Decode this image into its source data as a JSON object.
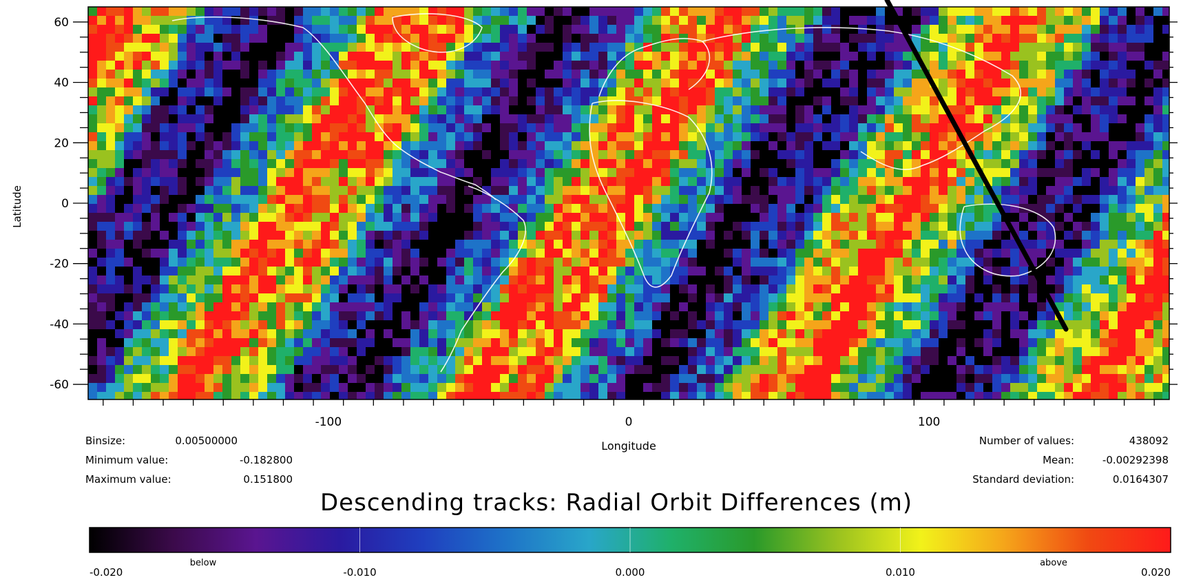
{
  "map": {
    "x_label": "Longitude",
    "y_label": "Latitude",
    "x_ticks": [
      "-100",
      "0",
      "100"
    ],
    "y_ticks": [
      "60",
      "40",
      "20",
      "0",
      "-20",
      "-40",
      "-60"
    ],
    "x_range": [
      -180,
      180
    ],
    "y_range": [
      -65,
      65
    ],
    "colormap": [
      "#000000",
      "#3b0a4a",
      "#5a1590",
      "#2a1aa0",
      "#1f3fbf",
      "#1e73c8",
      "#29a6c9",
      "#1fb06a",
      "#2a9a2a",
      "#9ac21f",
      "#f2f21a",
      "#f5a51a",
      "#f04a12",
      "#ff1a1a"
    ],
    "coastline_color": "#ffffff",
    "track_line_color": "#000000"
  },
  "stats_left": [
    {
      "label": "Binsize:",
      "value": "0.00500000"
    },
    {
      "label": "Minimum value:",
      "value": "-0.182800"
    },
    {
      "label": "Maximum value:",
      "value": "0.151800"
    }
  ],
  "stats_right": [
    {
      "label": "Number of values:",
      "value": "438092"
    },
    {
      "label": "Mean:",
      "value": "-0.00292398"
    },
    {
      "label": "Standard deviation:",
      "value": "0.0164307"
    }
  ],
  "title": "Descending tracks: Radial Orbit Differences (m)",
  "colorbar": {
    "range": [
      -0.02,
      0.02
    ],
    "ticks": [
      "-0.020",
      "-0.010",
      "0.000",
      "0.010",
      "0.020"
    ],
    "below_label": "below",
    "above_label": "above"
  }
}
